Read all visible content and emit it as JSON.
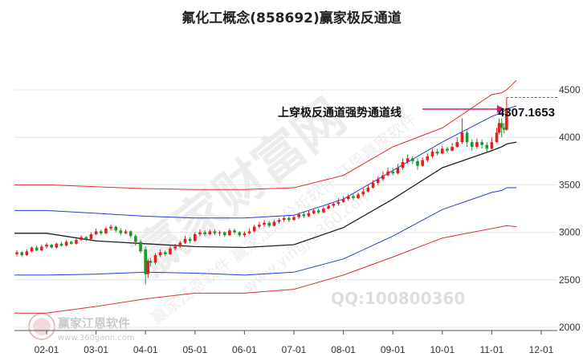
{
  "title": "氟化工概念(858692)赢家极反通道",
  "annotation": {
    "label": "上穿极反通道强势通道线",
    "value": "4307.1653"
  },
  "watermark": {
    "main": "赢家财富网",
    "sub1": "赢家江恩软件 赢家江恩分析软件 江恩赢家软件",
    "sub2": "www.yingjia360.com",
    "qq": "QQ:100800360",
    "logo_text": "赢家江恩软件",
    "logo_url": "www.360gann.com"
  },
  "colors": {
    "up": "#e02020",
    "down": "#1a9a2a",
    "outer_band": "#e03030",
    "inner_band": "#2040d0",
    "middle_line": "#222222",
    "annotation": "#d0206a",
    "dashed": "#1a9a2a"
  },
  "chart_data": {
    "type": "candlestick",
    "x_ticks": [
      "02-01",
      "03-01",
      "04-01",
      "05-01",
      "06-01",
      "07-01",
      "08-01",
      "09-01",
      "10-01",
      "11-01",
      "12-01"
    ],
    "y_ticks": [
      2000,
      2500,
      3000,
      3500,
      4000,
      4500
    ],
    "ylim": [
      2000,
      4600
    ],
    "lines": [
      {
        "name": "upper-outer",
        "color": "#e03030",
        "points": [
          [
            0,
            3500
          ],
          [
            1,
            3480
          ],
          [
            2,
            3460
          ],
          [
            3,
            3450
          ],
          [
            4,
            3450
          ],
          [
            5,
            3470
          ],
          [
            6,
            3600
          ],
          [
            7,
            3900
          ],
          [
            8,
            4100
          ],
          [
            9,
            4450
          ],
          [
            9.2,
            4470
          ],
          [
            9.3,
            4500
          ],
          [
            9.5,
            4600
          ]
        ]
      },
      {
        "name": "upper-inner",
        "color": "#2040d0",
        "points": [
          [
            0,
            3230
          ],
          [
            1,
            3200
          ],
          [
            2,
            3170
          ],
          [
            3,
            3150
          ],
          [
            4,
            3150
          ],
          [
            5,
            3180
          ],
          [
            6,
            3350
          ],
          [
            7,
            3650
          ],
          [
            8,
            3950
          ],
          [
            9,
            4220
          ],
          [
            9.2,
            4260
          ],
          [
            9.3,
            4300
          ],
          [
            9.5,
            4330
          ]
        ]
      },
      {
        "name": "middle",
        "color": "#222222",
        "points": [
          [
            0,
            2990
          ],
          [
            1,
            2910
          ],
          [
            2,
            2880
          ],
          [
            3,
            2850
          ],
          [
            4,
            2840
          ],
          [
            5,
            2870
          ],
          [
            6,
            3050
          ],
          [
            7,
            3350
          ],
          [
            8,
            3680
          ],
          [
            9,
            3860
          ],
          [
            9.2,
            3900
          ],
          [
            9.3,
            3930
          ],
          [
            9.5,
            3950
          ]
        ]
      },
      {
        "name": "lower-inner",
        "color": "#2040d0",
        "points": [
          [
            0,
            2550
          ],
          [
            1,
            2560
          ],
          [
            2,
            2580
          ],
          [
            3,
            2570
          ],
          [
            4,
            2550
          ],
          [
            5,
            2580
          ],
          [
            6,
            2720
          ],
          [
            7,
            2960
          ],
          [
            8,
            3240
          ],
          [
            9,
            3420
          ],
          [
            9.2,
            3440
          ],
          [
            9.3,
            3470
          ],
          [
            9.5,
            3470
          ]
        ]
      },
      {
        "name": "lower-outer",
        "color": "#e03030",
        "points": [
          [
            0,
            2150
          ],
          [
            1,
            2220
          ],
          [
            2,
            2300
          ],
          [
            3,
            2360
          ],
          [
            4,
            2360
          ],
          [
            5,
            2400
          ],
          [
            6,
            2550
          ],
          [
            7,
            2740
          ],
          [
            8,
            2940
          ],
          [
            9,
            3040
          ],
          [
            9.2,
            3060
          ],
          [
            9.3,
            3070
          ],
          [
            9.5,
            3060
          ]
        ]
      }
    ],
    "candles": [
      [
        -0.6,
        2770,
        2790,
        2750,
        2810
      ],
      [
        -0.5,
        2790,
        2760,
        2740,
        2800
      ],
      [
        -0.4,
        2760,
        2800,
        2750,
        2820
      ],
      [
        -0.3,
        2800,
        2840,
        2790,
        2850
      ],
      [
        -0.2,
        2840,
        2810,
        2800,
        2860
      ],
      [
        -0.1,
        2810,
        2850,
        2800,
        2870
      ],
      [
        0.0,
        2850,
        2870,
        2830,
        2890
      ],
      [
        0.1,
        2870,
        2840,
        2830,
        2880
      ],
      [
        0.2,
        2840,
        2880,
        2830,
        2890
      ],
      [
        0.3,
        2880,
        2860,
        2850,
        2900
      ],
      [
        0.4,
        2860,
        2900,
        2850,
        2920
      ],
      [
        0.5,
        2900,
        2880,
        2870,
        2910
      ],
      [
        0.6,
        2880,
        2920,
        2870,
        2940
      ],
      [
        0.7,
        2920,
        2950,
        2910,
        2970
      ],
      [
        0.8,
        2950,
        2930,
        2910,
        2960
      ],
      [
        0.9,
        2930,
        2980,
        2920,
        3000
      ],
      [
        1.0,
        2980,
        3010,
        2970,
        3040
      ],
      [
        1.1,
        3010,
        2990,
        2970,
        3030
      ],
      [
        1.2,
        2990,
        3040,
        2980,
        3060
      ],
      [
        1.3,
        3040,
        3060,
        3020,
        3080
      ],
      [
        1.4,
        3060,
        3020,
        3000,
        3070
      ],
      [
        1.5,
        3020,
        2990,
        2970,
        3040
      ],
      [
        1.6,
        2990,
        3010,
        2980,
        3030
      ],
      [
        1.7,
        3010,
        2960,
        2940,
        3020
      ],
      [
        1.8,
        2960,
        2900,
        2860,
        2980
      ],
      [
        1.9,
        2900,
        2800,
        2780,
        2920
      ],
      [
        2.0,
        2820,
        2560,
        2450,
        2850
      ],
      [
        2.05,
        2560,
        2700,
        2520,
        2720
      ],
      [
        2.1,
        2700,
        2680,
        2640,
        2730
      ],
      [
        2.2,
        2680,
        2760,
        2660,
        2780
      ],
      [
        2.3,
        2760,
        2790,
        2740,
        2820
      ],
      [
        2.4,
        2790,
        2770,
        2750,
        2810
      ],
      [
        2.5,
        2770,
        2830,
        2760,
        2850
      ],
      [
        2.6,
        2830,
        2850,
        2810,
        2880
      ],
      [
        2.7,
        2850,
        2890,
        2840,
        2910
      ],
      [
        2.8,
        2890,
        2930,
        2880,
        2960
      ],
      [
        2.9,
        2930,
        2910,
        2890,
        2950
      ],
      [
        3.0,
        2910,
        2980,
        2900,
        3000
      ],
      [
        3.1,
        2980,
        3000,
        2960,
        3030
      ],
      [
        3.2,
        3000,
        2980,
        2960,
        3020
      ],
      [
        3.3,
        2980,
        3010,
        2970,
        3030
      ],
      [
        3.4,
        3010,
        2990,
        2970,
        3030
      ],
      [
        3.5,
        2990,
        3000,
        2960,
        3020
      ],
      [
        3.6,
        3000,
        2970,
        2950,
        3010
      ],
      [
        3.7,
        2970,
        3020,
        2960,
        3040
      ],
      [
        3.8,
        3020,
        3000,
        2980,
        3040
      ],
      [
        3.9,
        3000,
        2970,
        2950,
        3010
      ],
      [
        4.0,
        2970,
        2990,
        2950,
        3010
      ],
      [
        4.1,
        2990,
        3010,
        2980,
        3040
      ],
      [
        4.2,
        3010,
        3060,
        3000,
        3080
      ],
      [
        4.3,
        3060,
        3080,
        3040,
        3110
      ],
      [
        4.4,
        3080,
        3100,
        3060,
        3130
      ],
      [
        4.5,
        3100,
        3070,
        3050,
        3120
      ],
      [
        4.6,
        3070,
        3110,
        3060,
        3130
      ],
      [
        4.7,
        3110,
        3130,
        3090,
        3150
      ],
      [
        4.8,
        3130,
        3150,
        3110,
        3170
      ],
      [
        4.9,
        3150,
        3130,
        3110,
        3170
      ],
      [
        5.0,
        3130,
        3160,
        3120,
        3180
      ],
      [
        5.1,
        3160,
        3190,
        3140,
        3210
      ],
      [
        5.2,
        3190,
        3170,
        3150,
        3210
      ],
      [
        5.3,
        3170,
        3200,
        3160,
        3230
      ],
      [
        5.4,
        3200,
        3230,
        3190,
        3250
      ],
      [
        5.5,
        3230,
        3210,
        3190,
        3250
      ],
      [
        5.6,
        3210,
        3250,
        3200,
        3270
      ],
      [
        5.7,
        3250,
        3280,
        3240,
        3300
      ],
      [
        5.8,
        3280,
        3300,
        3260,
        3320
      ],
      [
        5.9,
        3300,
        3320,
        3280,
        3360
      ],
      [
        6.0,
        3320,
        3350,
        3310,
        3380
      ],
      [
        6.1,
        3350,
        3380,
        3330,
        3400
      ],
      [
        6.2,
        3380,
        3360,
        3340,
        3410
      ],
      [
        6.3,
        3360,
        3400,
        3350,
        3420
      ],
      [
        6.4,
        3400,
        3430,
        3380,
        3460
      ],
      [
        6.5,
        3430,
        3470,
        3420,
        3500
      ],
      [
        6.6,
        3470,
        3520,
        3460,
        3550
      ],
      [
        6.7,
        3520,
        3560,
        3500,
        3590
      ],
      [
        6.8,
        3560,
        3600,
        3540,
        3640
      ],
      [
        6.9,
        3600,
        3640,
        3590,
        3680
      ],
      [
        7.0,
        3640,
        3620,
        3600,
        3680
      ],
      [
        7.1,
        3620,
        3680,
        3610,
        3720
      ],
      [
        7.2,
        3680,
        3740,
        3660,
        3780
      ],
      [
        7.3,
        3740,
        3780,
        3720,
        3820
      ],
      [
        7.4,
        3780,
        3750,
        3720,
        3800
      ],
      [
        7.5,
        3750,
        3700,
        3660,
        3780
      ],
      [
        7.6,
        3700,
        3760,
        3690,
        3790
      ],
      [
        7.7,
        3760,
        3800,
        3740,
        3830
      ],
      [
        7.8,
        3800,
        3850,
        3780,
        3880
      ],
      [
        7.9,
        3850,
        3830,
        3810,
        3880
      ],
      [
        8.0,
        3830,
        3880,
        3820,
        3910
      ],
      [
        8.1,
        3880,
        3860,
        3840,
        3900
      ],
      [
        8.2,
        3860,
        3900,
        3850,
        3940
      ],
      [
        8.3,
        3900,
        3950,
        3890,
        4000
      ],
      [
        8.4,
        3950,
        4050,
        3930,
        4200
      ],
      [
        8.5,
        4050,
        3950,
        3900,
        4080
      ],
      [
        8.6,
        3950,
        3900,
        3860,
        3980
      ],
      [
        8.7,
        3900,
        3950,
        3880,
        3990
      ],
      [
        8.8,
        3950,
        3920,
        3880,
        3980
      ],
      [
        8.9,
        3920,
        3880,
        3850,
        3950
      ],
      [
        9.0,
        3880,
        3950,
        3870,
        4000
      ],
      [
        9.1,
        3950,
        4050,
        3940,
        4100
      ],
      [
        9.15,
        4050,
        4150,
        4030,
        4200
      ],
      [
        9.2,
        4150,
        4100,
        4000,
        4200
      ],
      [
        9.25,
        4100,
        4080,
        4040,
        4150
      ],
      [
        9.3,
        4080,
        4307,
        4070,
        4420
      ]
    ]
  }
}
